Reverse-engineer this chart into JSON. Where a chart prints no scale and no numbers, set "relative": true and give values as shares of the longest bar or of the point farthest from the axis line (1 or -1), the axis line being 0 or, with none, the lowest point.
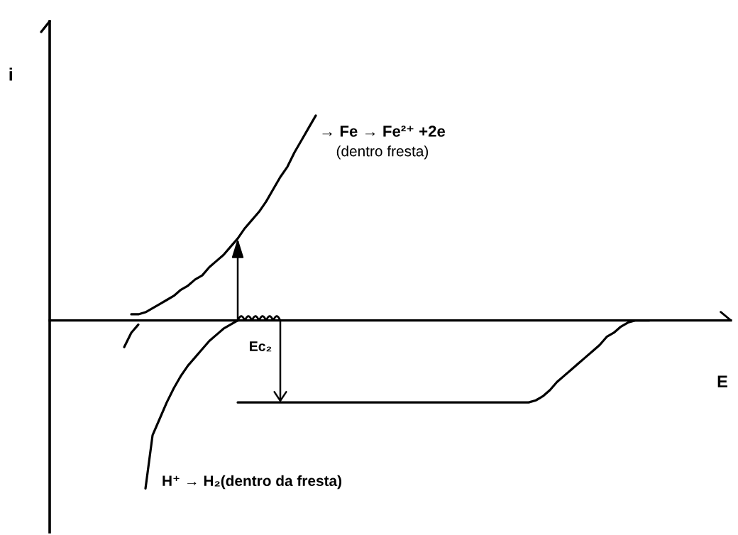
{
  "chart_data": {
    "type": "line",
    "relative": true,
    "xlabel": "E",
    "ylabel": "i",
    "annotations": [
      "Ec₂"
    ],
    "categories": [
      null,
      null,
      null,
      null,
      null,
      null,
      null,
      null,
      null,
      null,
      null,
      null,
      null,
      null,
      null,
      null,
      null,
      null,
      null,
      null,
      null,
      null,
      null,
      null,
      null,
      null,
      null,
      null,
      null,
      null,
      null,
      null,
      null,
      null,
      null,
      null,
      null,
      null,
      null,
      null,
      null,
      null,
      null,
      null,
      null,
      null,
      null,
      null,
      null,
      null,
      null,
      null,
      null,
      null,
      null,
      null,
      null,
      null,
      null,
      null,
      null,
      null,
      null,
      null,
      null,
      null,
      null,
      null,
      null,
      null,
      null,
      null,
      null,
      null,
      null,
      null,
      null,
      null,
      null,
      null,
      null,
      null,
      null,
      null,
      null,
      null,
      null,
      null,
      null,
      null,
      null,
      null,
      null,
      null,
      null,
      null
    ],
    "series": [
      {
        "name": "→ Fe → Fe²⁺ +2e\n(dentro fresta)",
        "color": "#000000",
        "values": [
          null,
          null,
          null,
          null,
          null,
          null,
          null,
          null,
          null,
          null,
          null,
          0.03,
          0.03,
          0.04,
          0.06,
          0.08,
          0.1,
          0.12,
          0.15,
          0.17,
          0.2,
          0.22,
          0.26,
          0.29,
          0.32,
          0.36,
          0.4,
          0.45,
          0.49,
          0.53,
          0.58,
          0.64,
          0.7,
          0.75,
          0.82,
          0.88,
          0.94,
          1.0,
          null,
          null,
          null,
          null,
          null,
          null,
          null,
          null,
          null,
          null,
          null,
          null,
          null,
          null,
          null,
          null,
          null,
          null,
          null,
          null,
          null,
          null,
          null,
          null,
          null,
          null,
          null,
          null,
          null,
          null,
          null,
          null,
          null,
          null,
          null,
          null,
          null,
          null,
          null,
          null,
          null,
          null,
          null,
          null,
          null,
          null,
          null,
          null,
          null,
          null,
          null,
          null,
          null,
          null,
          null,
          null,
          null,
          null
        ]
      },
      {
        "name": "H⁺ → H₂(dentro da fresta)",
        "color": "#000000",
        "values": [
          null,
          null,
          null,
          null,
          null,
          null,
          null,
          null,
          null,
          null,
          null,
          null,
          null,
          -0.82,
          -0.56,
          -0.48,
          -0.4,
          -0.33,
          -0.27,
          -0.22,
          -0.18,
          -0.14,
          -0.1,
          -0.07,
          -0.04,
          -0.02,
          0,
          null,
          null,
          null,
          null,
          null,
          null,
          null,
          null,
          null,
          null,
          null,
          null,
          null,
          null,
          null,
          null,
          null,
          null,
          null,
          null,
          null,
          null,
          null,
          null,
          null,
          null,
          null,
          null,
          null,
          null,
          null,
          null,
          null,
          null,
          null,
          null,
          null,
          null,
          null,
          null,
          null,
          null,
          null,
          null,
          null,
          null,
          null,
          null,
          null,
          null,
          null,
          null,
          null,
          null,
          null,
          null,
          null,
          null,
          null,
          null,
          null,
          null,
          null,
          null,
          null,
          null,
          null,
          null,
          null
        ]
      },
      {
        "color": "#000000",
        "values": [
          null,
          null,
          null,
          null,
          null,
          null,
          null,
          null,
          null,
          null,
          null,
          null,
          null,
          null,
          null,
          null,
          null,
          null,
          null,
          null,
          null,
          null,
          null,
          null,
          null,
          null,
          -0.4,
          -0.4,
          -0.4,
          -0.4,
          -0.4,
          -0.4,
          -0.4,
          -0.4,
          -0.4,
          -0.4,
          -0.4,
          -0.4,
          -0.4,
          -0.4,
          -0.4,
          -0.4,
          -0.4,
          -0.4,
          -0.4,
          -0.4,
          -0.4,
          -0.4,
          -0.4,
          -0.4,
          -0.4,
          -0.4,
          -0.4,
          -0.4,
          -0.4,
          -0.4,
          -0.4,
          -0.4,
          -0.4,
          -0.4,
          -0.4,
          -0.4,
          -0.4,
          -0.4,
          -0.4,
          -0.4,
          -0.4,
          -0.4,
          -0.39,
          -0.37,
          -0.34,
          -0.3,
          -0.27,
          -0.24,
          -0.21,
          -0.18,
          -0.15,
          -0.12,
          -0.08,
          -0.06,
          -0.03,
          -0.01,
          0,
          0,
          0,
          null,
          null,
          null,
          null,
          null,
          null,
          null,
          null,
          null,
          null,
          null
        ]
      },
      {
        "color": "#000000",
        "values": [
          null,
          null,
          null,
          null,
          null,
          null,
          null,
          null,
          null,
          null,
          -0.13,
          -0.06,
          -0.02,
          null,
          null,
          null,
          null,
          null,
          null,
          null,
          null,
          null,
          null,
          null,
          null,
          null,
          null,
          null,
          null,
          null,
          null,
          null,
          null,
          null,
          null,
          null,
          null,
          null,
          null,
          null,
          null,
          null,
          null,
          null,
          null,
          null,
          null,
          null,
          null,
          null,
          null,
          null,
          null,
          null,
          null,
          null,
          null,
          null,
          null,
          null,
          null,
          null,
          null,
          null,
          null,
          null,
          null,
          null,
          null,
          null,
          null,
          null,
          null,
          null,
          null,
          null,
          null,
          null,
          null,
          null,
          null,
          null,
          null,
          null,
          null,
          null,
          null,
          null,
          null,
          null,
          null,
          null,
          null,
          null,
          null,
          null
        ]
      }
    ]
  }
}
